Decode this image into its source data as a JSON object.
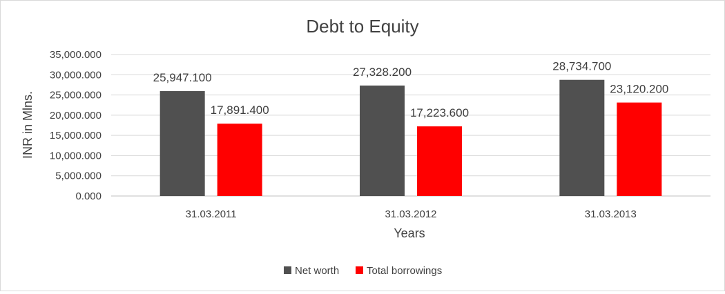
{
  "chart_data": {
    "type": "bar",
    "title": "Debt to Equity",
    "xlabel": "Years",
    "ylabel": "INR in Mlns.",
    "categories": [
      "31.03.2011",
      "31.03.2012",
      "31.03.2013"
    ],
    "series": [
      {
        "name": "Net worth",
        "color": "#505050",
        "values": [
          25947.1,
          27328.2,
          28734.7
        ],
        "labels": [
          "25,947.100",
          "27,328.200",
          "28,734.700"
        ]
      },
      {
        "name": "Total borrowings",
        "color": "#ff0000",
        "values": [
          17891.4,
          17223.6,
          23120.2
        ],
        "labels": [
          "17,891.400",
          "17,223.600",
          "23,120.200"
        ]
      }
    ],
    "ylim": [
      0,
      35000
    ],
    "yticks": [
      0,
      5000,
      10000,
      15000,
      20000,
      25000,
      30000,
      35000
    ],
    "ytick_labels": [
      "0.000",
      "5,000.000",
      "10,000.000",
      "15,000.000",
      "20,000.000",
      "25,000.000",
      "30,000.000",
      "35,000.000"
    ],
    "grid": true,
    "legend_position": "bottom"
  }
}
